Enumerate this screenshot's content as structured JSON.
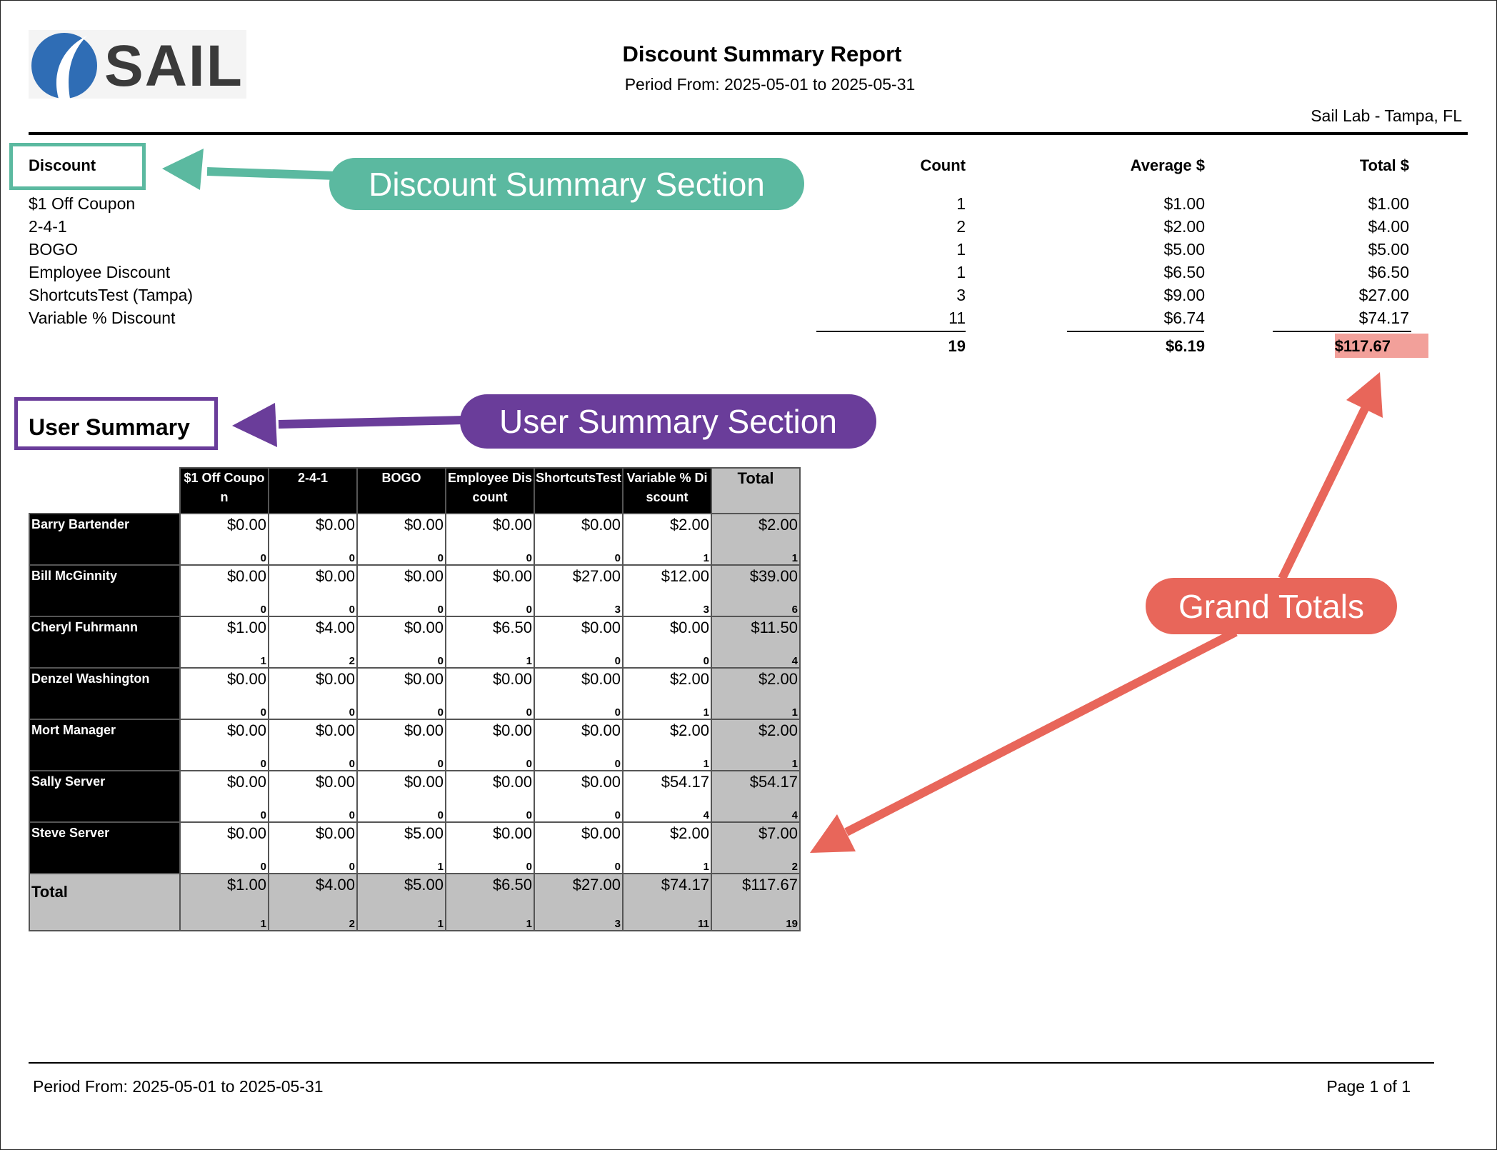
{
  "logo": "SAIL",
  "header": {
    "title": "Discount Summary Report",
    "period": "Period From: 2025-05-01 to 2025-05-31",
    "location": "Sail Lab - Tampa, FL"
  },
  "discount_summary": {
    "headers": [
      "Discount",
      "Count",
      "Average $",
      "Total $"
    ],
    "rows": [
      [
        "$1 Off Coupon",
        "1",
        "$1.00",
        "$1.00"
      ],
      [
        "2-4-1",
        "2",
        "$2.00",
        "$4.00"
      ],
      [
        "BOGO",
        "1",
        "$5.00",
        "$5.00"
      ],
      [
        "Employee Discount",
        "1",
        "$6.50",
        "$6.50"
      ],
      [
        "ShortcutsTest (Tampa)",
        "3",
        "$9.00",
        "$27.00"
      ],
      [
        "Variable % Discount",
        "11",
        "$6.74",
        "$74.17"
      ]
    ],
    "totals": [
      "19",
      "$6.19",
      "$117.67"
    ]
  },
  "user_summary": {
    "title": "User Summary",
    "columns": [
      "$1 Off Coupon",
      "2-4-1",
      "BOGO",
      "Employee Discount",
      "ShortcutsTest",
      "Variable % Discount",
      "Total"
    ],
    "rows": [
      {
        "name": "Barry Bartender",
        "cells": [
          [
            "$0.00",
            "0"
          ],
          [
            "$0.00",
            "0"
          ],
          [
            "$0.00",
            "0"
          ],
          [
            "$0.00",
            "0"
          ],
          [
            "$0.00",
            "0"
          ],
          [
            "$2.00",
            "1"
          ],
          [
            "$2.00",
            "1"
          ]
        ]
      },
      {
        "name": "Bill McGinnity",
        "cells": [
          [
            "$0.00",
            "0"
          ],
          [
            "$0.00",
            "0"
          ],
          [
            "$0.00",
            "0"
          ],
          [
            "$0.00",
            "0"
          ],
          [
            "$27.00",
            "3"
          ],
          [
            "$12.00",
            "3"
          ],
          [
            "$39.00",
            "6"
          ]
        ]
      },
      {
        "name": "Cheryl Fuhrmann",
        "cells": [
          [
            "$1.00",
            "1"
          ],
          [
            "$4.00",
            "2"
          ],
          [
            "$0.00",
            "0"
          ],
          [
            "$6.50",
            "1"
          ],
          [
            "$0.00",
            "0"
          ],
          [
            "$0.00",
            "0"
          ],
          [
            "$11.50",
            "4"
          ]
        ]
      },
      {
        "name": "Denzel Washington",
        "cells": [
          [
            "$0.00",
            "0"
          ],
          [
            "$0.00",
            "0"
          ],
          [
            "$0.00",
            "0"
          ],
          [
            "$0.00",
            "0"
          ],
          [
            "$0.00",
            "0"
          ],
          [
            "$2.00",
            "1"
          ],
          [
            "$2.00",
            "1"
          ]
        ]
      },
      {
        "name": "Mort Manager",
        "cells": [
          [
            "$0.00",
            "0"
          ],
          [
            "$0.00",
            "0"
          ],
          [
            "$0.00",
            "0"
          ],
          [
            "$0.00",
            "0"
          ],
          [
            "$0.00",
            "0"
          ],
          [
            "$2.00",
            "1"
          ],
          [
            "$2.00",
            "1"
          ]
        ]
      },
      {
        "name": "Sally Server",
        "cells": [
          [
            "$0.00",
            "0"
          ],
          [
            "$0.00",
            "0"
          ],
          [
            "$0.00",
            "0"
          ],
          [
            "$0.00",
            "0"
          ],
          [
            "$0.00",
            "0"
          ],
          [
            "$54.17",
            "4"
          ],
          [
            "$54.17",
            "4"
          ]
        ]
      },
      {
        "name": "Steve Server",
        "cells": [
          [
            "$0.00",
            "0"
          ],
          [
            "$0.00",
            "0"
          ],
          [
            "$5.00",
            "1"
          ],
          [
            "$0.00",
            "0"
          ],
          [
            "$0.00",
            "0"
          ],
          [
            "$2.00",
            "1"
          ],
          [
            "$7.00",
            "2"
          ]
        ]
      }
    ],
    "total": {
      "name": "Total",
      "cells": [
        [
          "$1.00",
          "1"
        ],
        [
          "$4.00",
          "2"
        ],
        [
          "$5.00",
          "1"
        ],
        [
          "$6.50",
          "1"
        ],
        [
          "$27.00",
          "3"
        ],
        [
          "$74.17",
          "11"
        ],
        [
          "$117.67",
          "19"
        ]
      ]
    }
  },
  "annotations": [
    "Discount Summary Section",
    "User Summary Section",
    "Grand Totals"
  ],
  "footer": {
    "period": "Period From: 2025-05-01 to 2025-05-31",
    "page": "Page 1 of 1"
  }
}
